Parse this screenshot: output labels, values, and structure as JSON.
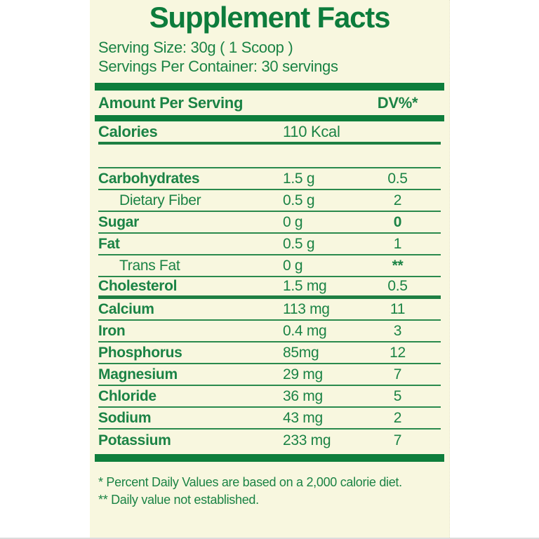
{
  "colors": {
    "page_background": "#ffffff",
    "label_background": "#f8f7df",
    "text_green": "#1b8345",
    "title_green": "#0d7c3c",
    "bar_green": "#0e7e3c"
  },
  "label": {
    "title": "Supplement Facts",
    "serving_size": "Serving Size: 30g ( 1 Scoop )",
    "servings_per_container": "Servings Per Container: 30 servings",
    "column_headers": {
      "amount": "Amount Per Serving",
      "dv": "DV%*"
    },
    "calories_row": {
      "name": "Calories",
      "amount": "110 Kcal",
      "dv": ""
    },
    "rows": [
      {
        "name": "Carbohydrates",
        "amount": "1.5 g",
        "dv": "0.5",
        "bold": true,
        "indent": false,
        "dv_bold": false,
        "divider": "thin"
      },
      {
        "name": "Dietary Fiber",
        "amount": "0.5 g",
        "dv": "2",
        "bold": false,
        "indent": true,
        "dv_bold": false,
        "divider": "thin"
      },
      {
        "name": "Sugar",
        "amount": "0 g",
        "dv": "0",
        "bold": true,
        "indent": false,
        "dv_bold": true,
        "divider": "thin"
      },
      {
        "name": "Fat",
        "amount": "0.5 g",
        "dv": "1",
        "bold": true,
        "indent": false,
        "dv_bold": false,
        "divider": "thin"
      },
      {
        "name": "Trans Fat",
        "amount": "0 g",
        "dv": "**",
        "bold": false,
        "indent": true,
        "dv_bold": true,
        "divider": "thin"
      },
      {
        "name": "Cholesterol",
        "amount": "1.5 mg",
        "dv": "0.5",
        "bold": true,
        "indent": false,
        "dv_bold": false,
        "divider": "medium"
      },
      {
        "name": "Calcium",
        "amount": "113 mg",
        "dv": "11",
        "bold": true,
        "indent": false,
        "dv_bold": false,
        "divider": "thin"
      },
      {
        "name": "Iron",
        "amount": "0.4 mg",
        "dv": "3",
        "bold": true,
        "indent": false,
        "dv_bold": false,
        "divider": "thin"
      },
      {
        "name": "Phosphorus",
        "amount": "85mg",
        "dv": "12",
        "bold": true,
        "indent": false,
        "dv_bold": false,
        "divider": "thin"
      },
      {
        "name": "Magnesium",
        "amount": "29 mg",
        "dv": "7",
        "bold": true,
        "indent": false,
        "dv_bold": false,
        "divider": "thin"
      },
      {
        "name": "Chloride",
        "amount": "36 mg",
        "dv": "5",
        "bold": true,
        "indent": false,
        "dv_bold": false,
        "divider": "thin"
      },
      {
        "name": "Sodium",
        "amount": "43 mg",
        "dv": "2",
        "bold": true,
        "indent": false,
        "dv_bold": false,
        "divider": "thin"
      },
      {
        "name": "Potassium",
        "amount": "233 mg",
        "dv": "7",
        "bold": true,
        "indent": false,
        "dv_bold": false,
        "divider": "none"
      }
    ],
    "footnotes": [
      "* Percent Daily Values are based on a 2,000 calorie diet.",
      "** Daily value not established."
    ]
  }
}
